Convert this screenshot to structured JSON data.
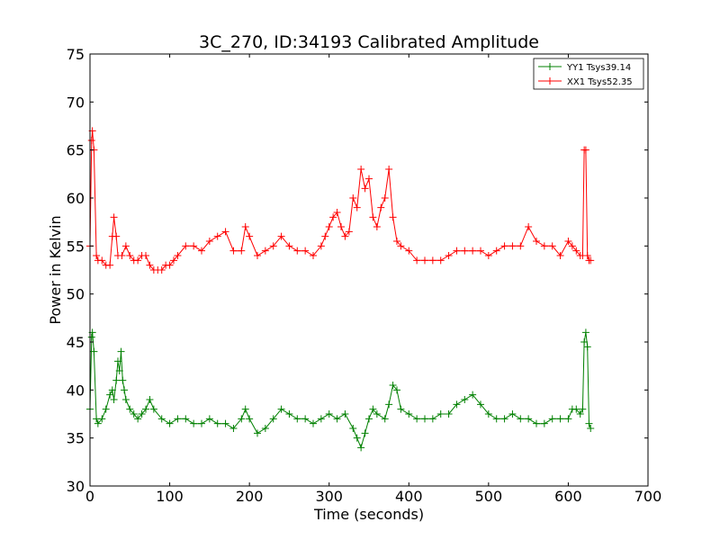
{
  "chart_data": {
    "type": "line",
    "title": "3C_270, ID:34193 Calibrated Amplitude",
    "xlabel": "Time (seconds)",
    "ylabel": "Power in Kelvin",
    "xlim": [
      0,
      700
    ],
    "ylim": [
      30,
      75
    ],
    "xticks": [
      "0",
      "100",
      "200",
      "300",
      "400",
      "500",
      "600",
      "700"
    ],
    "yticks": [
      "30",
      "35",
      "40",
      "45",
      "50",
      "55",
      "60",
      "65",
      "70",
      "75"
    ],
    "grid": false,
    "legend_position": "top-right",
    "marker": "plus",
    "series": [
      {
        "name": "YY1 Tsys39.14",
        "color": "#008000",
        "x": [
          0,
          2,
          3,
          5,
          8,
          10,
          15,
          20,
          25,
          28,
          30,
          33,
          35,
          37,
          39,
          41,
          43,
          45,
          50,
          55,
          60,
          65,
          70,
          75,
          80,
          90,
          100,
          110,
          120,
          130,
          140,
          150,
          160,
          170,
          180,
          190,
          195,
          200,
          210,
          220,
          230,
          240,
          250,
          260,
          270,
          280,
          290,
          300,
          310,
          320,
          330,
          335,
          340,
          345,
          350,
          355,
          360,
          370,
          375,
          380,
          385,
          390,
          400,
          410,
          420,
          430,
          440,
          450,
          460,
          470,
          480,
          490,
          500,
          510,
          520,
          530,
          540,
          550,
          560,
          570,
          580,
          590,
          600,
          605,
          610,
          615,
          618,
          620,
          622,
          624,
          626,
          628
        ],
        "y": [
          38,
          45.5,
          46,
          44,
          37,
          36.5,
          37,
          38,
          39.5,
          40,
          39,
          41,
          43,
          42,
          44,
          41,
          40,
          39,
          38,
          37.5,
          37,
          37.5,
          38,
          39,
          38,
          37,
          36.5,
          37,
          37,
          36.5,
          36.5,
          37,
          36.5,
          36.5,
          36,
          37,
          38,
          37,
          35.5,
          36,
          37,
          38,
          37.5,
          37,
          37,
          36.5,
          37,
          37.5,
          37,
          37.5,
          36,
          35,
          34,
          35.5,
          37,
          38,
          37.5,
          37,
          38.5,
          40.5,
          40,
          38,
          37.5,
          37,
          37,
          37,
          37.5,
          37.5,
          38.5,
          39,
          39.5,
          38.5,
          37.5,
          37,
          37,
          37.5,
          37,
          37,
          36.5,
          36.5,
          37,
          37,
          37,
          38,
          38,
          37.5,
          38,
          45,
          46,
          44.5,
          36.5,
          36
        ]
      },
      {
        "name": "XX1 Tsys52.35",
        "color": "#ff0000",
        "x": [
          0,
          2,
          3,
          5,
          8,
          10,
          15,
          20,
          25,
          28,
          30,
          33,
          35,
          40,
          45,
          50,
          55,
          60,
          65,
          70,
          75,
          80,
          85,
          90,
          95,
          100,
          105,
          110,
          120,
          130,
          140,
          150,
          160,
          170,
          180,
          190,
          195,
          200,
          210,
          220,
          230,
          240,
          250,
          260,
          270,
          280,
          290,
          295,
          300,
          305,
          310,
          315,
          320,
          325,
          330,
          335,
          340,
          345,
          350,
          355,
          360,
          365,
          370,
          375,
          380,
          385,
          390,
          400,
          410,
          420,
          430,
          440,
          450,
          460,
          470,
          480,
          490,
          500,
          510,
          520,
          530,
          540,
          550,
          560,
          570,
          580,
          590,
          600,
          605,
          610,
          615,
          618,
          620,
          622,
          624,
          626,
          628
        ],
        "y": [
          55,
          66,
          67,
          65,
          54,
          53.5,
          53.5,
          53,
          53,
          56,
          58,
          56,
          54,
          54,
          55,
          54,
          53.5,
          53.5,
          54,
          54,
          53,
          52.5,
          52.5,
          52.5,
          53,
          53,
          53.5,
          54,
          55,
          55,
          54.5,
          55.5,
          56,
          56.5,
          54.5,
          54.5,
          57,
          56,
          54,
          54.5,
          55,
          56,
          55,
          54.5,
          54.5,
          54,
          55,
          56,
          57,
          58,
          58.5,
          57,
          56,
          56.5,
          60,
          59,
          63,
          61,
          62,
          58,
          57,
          59,
          60,
          63,
          58,
          55.5,
          55,
          54.5,
          53.5,
          53.5,
          53.5,
          53.5,
          54,
          54.5,
          54.5,
          54.5,
          54.5,
          54,
          54.5,
          55,
          55,
          55,
          57,
          55.5,
          55,
          55,
          54,
          55.5,
          55,
          54.5,
          54,
          54,
          65,
          65,
          54,
          53.5,
          53.5
        ]
      }
    ]
  }
}
